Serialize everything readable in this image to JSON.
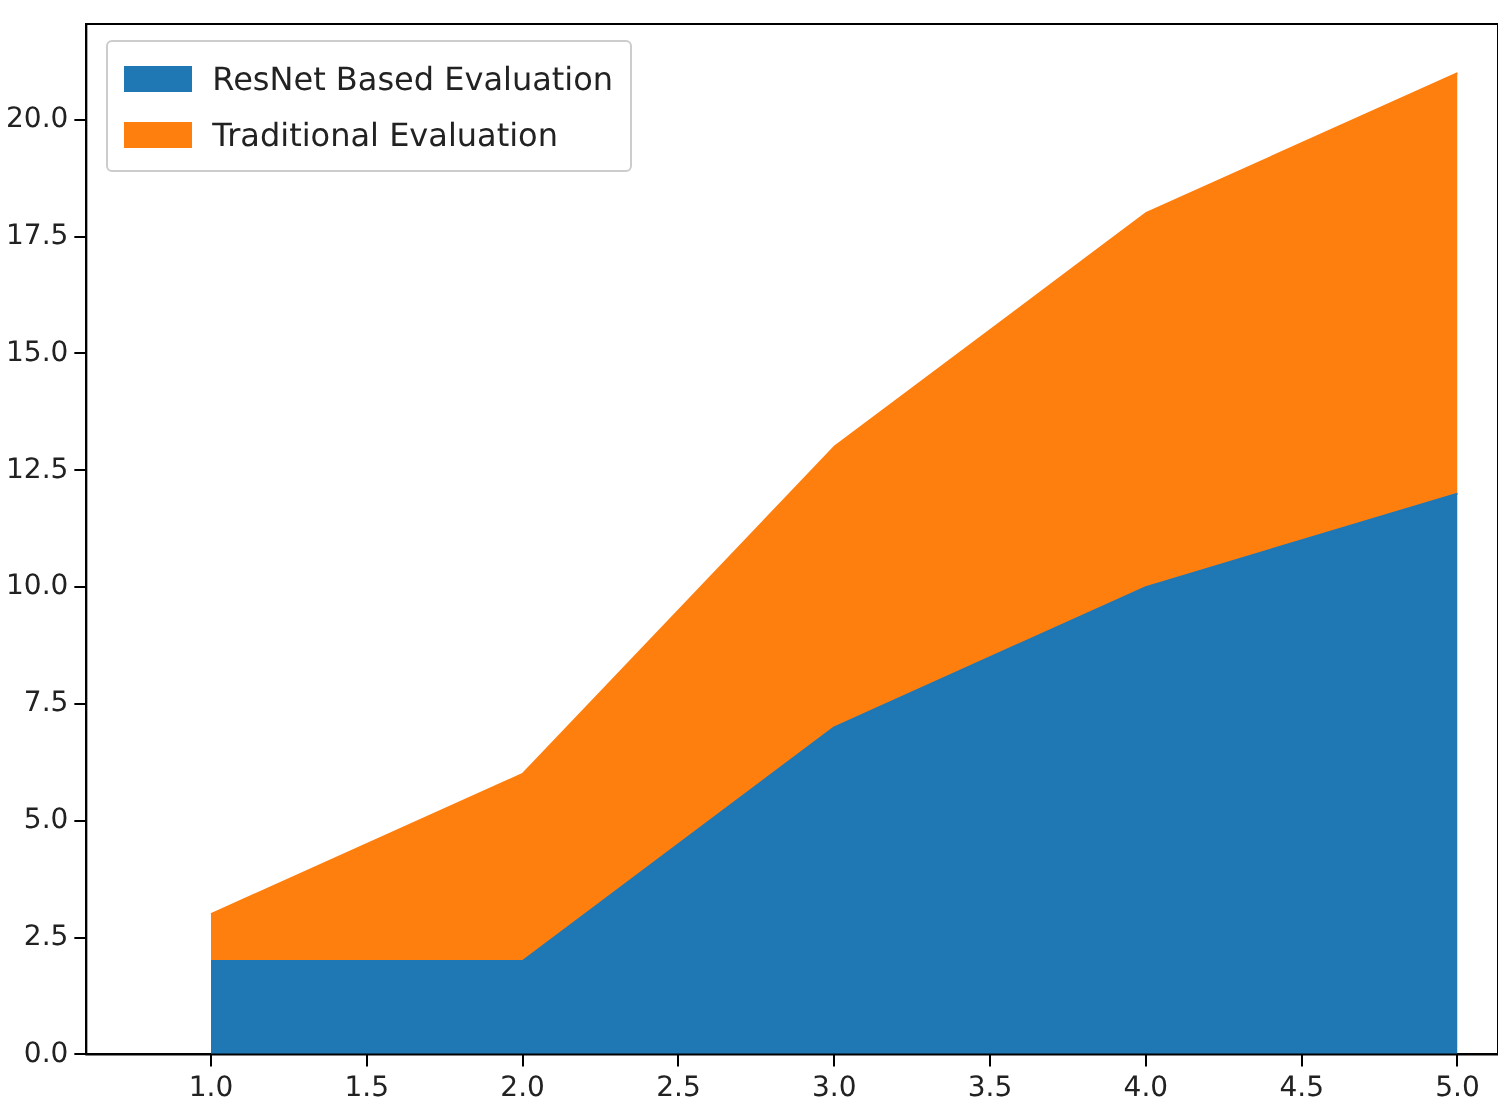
{
  "chart_data": {
    "type": "area",
    "stacked": true,
    "x": [
      1,
      2,
      3,
      4,
      5
    ],
    "series": [
      {
        "name": "ResNet Based Evaluation",
        "color": "#1f77b4",
        "values": [
          2,
          2,
          7,
          10,
          12
        ]
      },
      {
        "name": "Traditional Evaluation",
        "color": "#ff7f0e",
        "values": [
          1,
          4,
          6,
          8,
          9
        ]
      }
    ],
    "xlim": [
      0.6,
      5.13
    ],
    "xticks": [
      {
        "value": 1,
        "label": "1.0"
      },
      {
        "value": 1.5,
        "label": "1.5"
      },
      {
        "value": 2,
        "label": "2.0"
      },
      {
        "value": 2.5,
        "label": "2.5"
      },
      {
        "value": 3,
        "label": "3.0"
      },
      {
        "value": 3.5,
        "label": "3.5"
      },
      {
        "value": 4,
        "label": "4.0"
      },
      {
        "value": 4.5,
        "label": "4.5"
      },
      {
        "value": 5,
        "label": "5.0"
      }
    ],
    "ylim": [
      0,
      22.05
    ],
    "yticks": [
      {
        "value": 0,
        "label": "0.0"
      },
      {
        "value": 2.5,
        "label": "2.5"
      },
      {
        "value": 5,
        "label": "5.0"
      },
      {
        "value": 7.5,
        "label": "7.5"
      },
      {
        "value": 10,
        "label": "10.0"
      },
      {
        "value": 12.5,
        "label": "12.5"
      },
      {
        "value": 15,
        "label": "15.0"
      },
      {
        "value": 17.5,
        "label": "17.5"
      },
      {
        "value": 20,
        "label": "20.0"
      }
    ],
    "grid": false,
    "legend": "top left"
  }
}
